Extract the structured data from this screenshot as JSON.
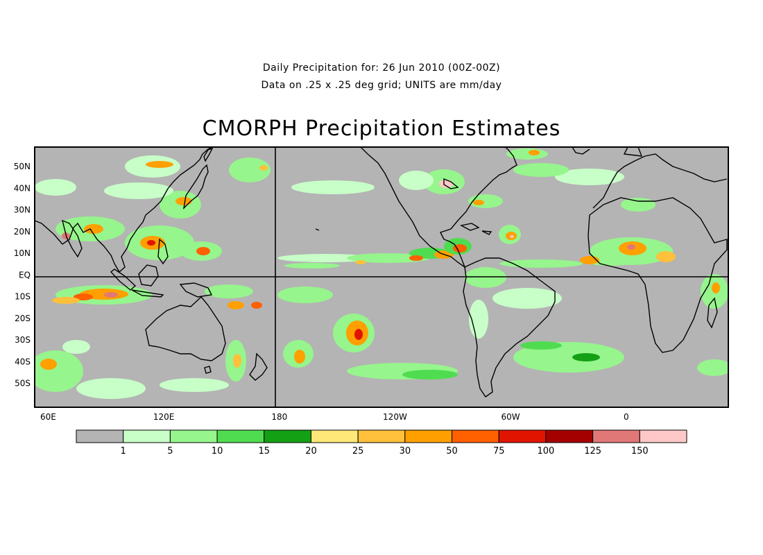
{
  "header": {
    "line1": "Daily Precipitation for: 26 Jun 2010 (00Z-00Z)",
    "line2": "Data on .25 x .25 deg grid; UNITS are mm/day",
    "title": "CMORPH Precipitation Estimates"
  },
  "map": {
    "lat_labels": [
      {
        "text": "50N",
        "lat": 50
      },
      {
        "text": "40N",
        "lat": 40
      },
      {
        "text": "30N",
        "lat": 30
      },
      {
        "text": "20N",
        "lat": 20
      },
      {
        "text": "10N",
        "lat": 10
      },
      {
        "text": "EQ",
        "lat": 0
      },
      {
        "text": "10S",
        "lat": -10
      },
      {
        "text": "20S",
        "lat": -20
      },
      {
        "text": "30S",
        "lat": -30
      },
      {
        "text": "40S",
        "lat": -40
      },
      {
        "text": "50S",
        "lat": -50
      }
    ],
    "lon_labels": [
      {
        "text": "60E",
        "lon": 60
      },
      {
        "text": "120E",
        "lon": 120
      },
      {
        "text": "180",
        "lon": 180
      },
      {
        "text": "120W",
        "lon": 240
      },
      {
        "text": "60W",
        "lon": 300
      },
      {
        "text": "0",
        "lon": 360
      }
    ],
    "background_color": "#b4b4b4",
    "coastline_color": "#000000"
  },
  "colorbar": {
    "colors": [
      "#b4b4b4",
      "#c8ffc8",
      "#96f58c",
      "#50dc50",
      "#14a014",
      "#ffe878",
      "#ffc03c",
      "#ffa000",
      "#ff6000",
      "#e11400",
      "#a50000",
      "#e17878",
      "#ffc8c8"
    ],
    "labels": [
      "1",
      "5",
      "10",
      "15",
      "20",
      "25",
      "30",
      "50",
      "75",
      "100",
      "125",
      "150"
    ]
  }
}
